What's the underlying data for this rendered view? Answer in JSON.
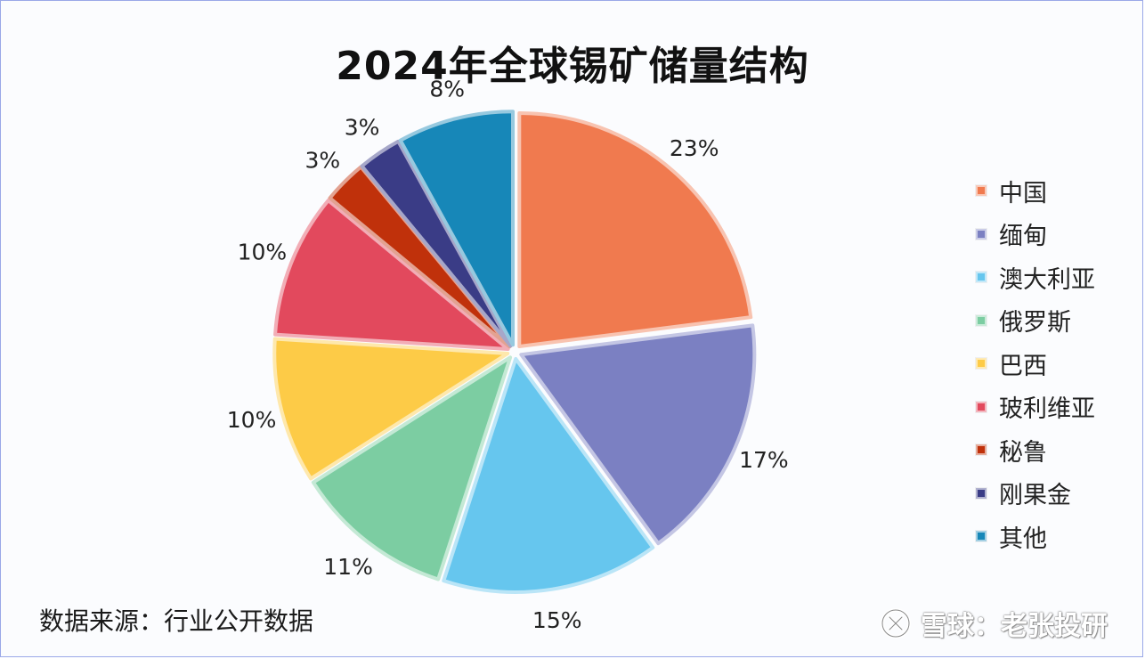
{
  "chart_data": {
    "type": "pie",
    "title": "2024年全球锡矿储量结构",
    "categories": [
      "中国",
      "缅甸",
      "澳大利亚",
      "俄罗斯",
      "巴西",
      "玻利维亚",
      "秘鲁",
      "刚果金",
      "其他"
    ],
    "values": [
      23,
      17,
      15,
      11,
      10,
      10,
      3,
      3,
      8
    ],
    "data_labels": [
      "23%",
      "17%",
      "15%",
      "11%",
      "10%",
      "10%",
      "3%",
      "3%",
      "8%"
    ],
    "colors": [
      "#f07a4f",
      "#7b80c2",
      "#66c6ee",
      "#7ccda2",
      "#fdcb47",
      "#e2495d",
      "#c0310b",
      "#3a3c86",
      "#1787b8"
    ],
    "legend_position": "right",
    "exploded": true
  },
  "source_note": "数据来源：行业公开数据",
  "watermark": {
    "text": "雪球：老张投研",
    "icon": "xueqiu-logo-icon"
  }
}
